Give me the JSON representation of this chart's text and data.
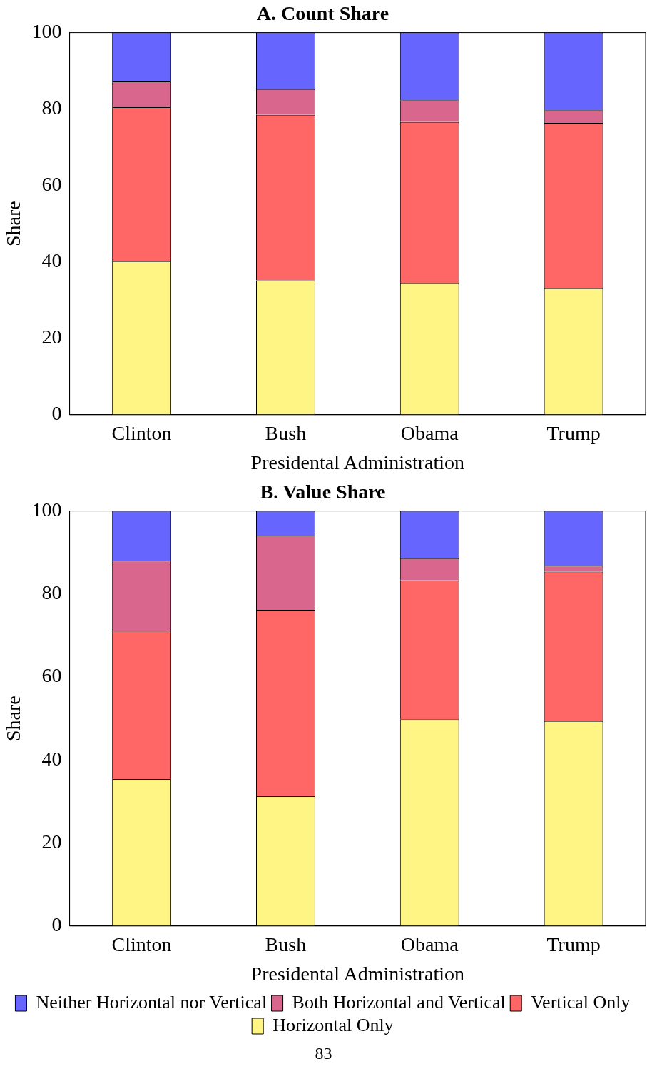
{
  "chart_data": [
    {
      "type": "bar",
      "title": "A. Count Share",
      "xlabel": "Presidental Administration",
      "ylabel": "Share",
      "categories": [
        "Clinton",
        "Bush",
        "Obama",
        "Trump"
      ],
      "stacked": true,
      "ylim": [
        0,
        100
      ],
      "yticks": [
        0,
        20,
        40,
        60,
        80,
        100
      ],
      "grid": false,
      "legend": false,
      "series": [
        {
          "color": "#fff585",
          "values": [
            40.2,
            35.2,
            34.4,
            33.1
          ]
        },
        {
          "color": "#ff6666",
          "values": [
            40.3,
            43.3,
            42.2,
            43.3
          ]
        },
        {
          "color": "#d9668c",
          "values": [
            6.7,
            6.7,
            5.7,
            3.3
          ]
        },
        {
          "color": "#6666ff",
          "values": [
            12.8,
            14.8,
            17.7,
            20.3
          ]
        }
      ]
    },
    {
      "type": "bar",
      "title": "B. Value Share",
      "xlabel": "Presidental Administration",
      "ylabel": "Share",
      "categories": [
        "Clinton",
        "Bush",
        "Obama",
        "Trump"
      ],
      "stacked": true,
      "ylim": [
        0,
        100
      ],
      "yticks": [
        0,
        20,
        40,
        60,
        80,
        100
      ],
      "grid": false,
      "legend": "bottom",
      "annotations": [
        "83"
      ],
      "series": [
        {
          "name": "Horizontal Only",
          "color": "#fff585",
          "values": [
            35.4,
            31.3,
            49.8,
            49.4
          ]
        },
        {
          "name": "Vertical Only",
          "color": "#ff6666",
          "values": [
            35.7,
            44.9,
            33.5,
            36.0
          ]
        },
        {
          "name": "Both Horizontal and Vertical",
          "color": "#d9668c",
          "values": [
            16.9,
            17.9,
            5.3,
            1.4
          ]
        },
        {
          "name": "Neither Horizontal nor Vertical",
          "color": "#6666ff",
          "values": [
            12.0,
            5.9,
            11.4,
            13.2
          ]
        }
      ]
    }
  ]
}
